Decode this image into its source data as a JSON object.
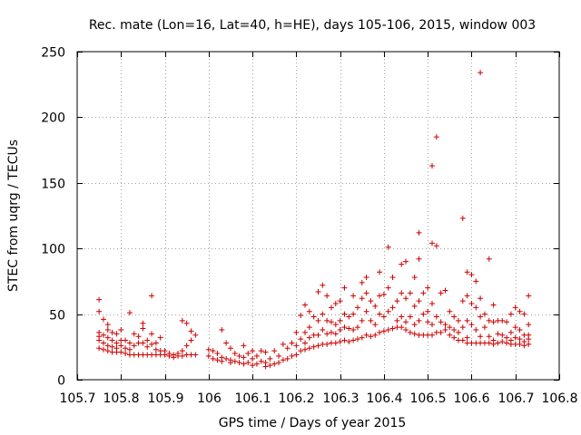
{
  "chart_data": {
    "type": "scatter",
    "title": "Rec. mate (Lon=16, Lat=40, h=HE), days 105-106, 2015, window 003",
    "xlabel": "GPS time / Days of year 2015",
    "ylabel": "STEC from uqrg / TECUs",
    "xlim": [
      105.7,
      106.8
    ],
    "ylim": [
      0,
      250
    ],
    "x_ticks": [
      "105.7",
      "105.8",
      "105.9",
      "106",
      "106.1",
      "106.2",
      "106.3",
      "106.4",
      "106.5",
      "106.6",
      "106.7",
      "106.8"
    ],
    "y_ticks": [
      "0",
      "50",
      "100",
      "150",
      "200",
      "250"
    ],
    "grid": true,
    "marker": "+",
    "color": "#cc0000",
    "series": [
      {
        "values": [
          [
            105.75,
            61
          ],
          [
            105.75,
            52
          ],
          [
            105.75,
            36
          ],
          [
            105.75,
            33
          ],
          [
            105.75,
            30
          ],
          [
            105.75,
            24
          ],
          [
            105.76,
            46
          ],
          [
            105.76,
            34
          ],
          [
            105.76,
            28
          ],
          [
            105.76,
            23
          ],
          [
            105.77,
            42
          ],
          [
            105.77,
            38
          ],
          [
            105.77,
            32
          ],
          [
            105.77,
            26
          ],
          [
            105.77,
            22
          ],
          [
            105.78,
            36
          ],
          [
            105.78,
            30
          ],
          [
            105.78,
            25
          ],
          [
            105.78,
            21
          ],
          [
            105.79,
            35
          ],
          [
            105.79,
            28
          ],
          [
            105.79,
            24
          ],
          [
            105.79,
            21
          ],
          [
            105.8,
            38
          ],
          [
            105.8,
            30
          ],
          [
            105.8,
            26
          ],
          [
            105.8,
            21
          ],
          [
            105.81,
            30
          ],
          [
            105.81,
            24
          ],
          [
            105.81,
            20
          ],
          [
            105.82,
            51
          ],
          [
            105.82,
            28
          ],
          [
            105.82,
            23
          ],
          [
            105.82,
            19
          ],
          [
            105.83,
            35
          ],
          [
            105.83,
            26
          ],
          [
            105.83,
            19
          ],
          [
            105.84,
            33
          ],
          [
            105.84,
            28
          ],
          [
            105.84,
            19
          ],
          [
            105.85,
            43
          ],
          [
            105.85,
            39
          ],
          [
            105.85,
            28
          ],
          [
            105.85,
            19
          ],
          [
            105.86,
            30
          ],
          [
            105.86,
            25
          ],
          [
            105.86,
            19
          ],
          [
            105.87,
            64
          ],
          [
            105.87,
            35
          ],
          [
            105.87,
            27
          ],
          [
            105.87,
            19
          ],
          [
            105.88,
            28
          ],
          [
            105.88,
            23
          ],
          [
            105.88,
            19
          ],
          [
            105.89,
            32
          ],
          [
            105.89,
            22
          ],
          [
            105.89,
            19
          ],
          [
            105.9,
            22
          ],
          [
            105.9,
            19
          ],
          [
            105.91,
            20
          ],
          [
            105.91,
            18
          ],
          [
            105.92,
            19
          ],
          [
            105.92,
            17
          ],
          [
            105.93,
            20
          ],
          [
            105.93,
            18
          ],
          [
            105.94,
            45
          ],
          [
            105.94,
            22
          ],
          [
            105.94,
            18
          ],
          [
            105.95,
            43
          ],
          [
            105.95,
            26
          ],
          [
            105.95,
            19
          ],
          [
            105.96,
            37
          ],
          [
            105.96,
            30
          ],
          [
            105.96,
            19
          ],
          [
            105.97,
            34
          ],
          [
            105.97,
            19
          ],
          [
            106.0,
            23
          ],
          [
            106.0,
            18
          ],
          [
            106.01,
            22
          ],
          [
            106.01,
            16
          ],
          [
            106.02,
            20
          ],
          [
            106.02,
            15
          ],
          [
            106.03,
            38
          ],
          [
            106.03,
            17
          ],
          [
            106.03,
            14
          ],
          [
            106.04,
            28
          ],
          [
            106.04,
            16
          ],
          [
            106.05,
            24
          ],
          [
            106.05,
            15
          ],
          [
            106.05,
            13
          ],
          [
            106.06,
            20
          ],
          [
            106.06,
            14
          ],
          [
            106.07,
            18
          ],
          [
            106.07,
            13
          ],
          [
            106.08,
            26
          ],
          [
            106.08,
            17
          ],
          [
            106.08,
            12
          ],
          [
            106.09,
            20
          ],
          [
            106.09,
            13
          ],
          [
            106.1,
            22
          ],
          [
            106.1,
            16
          ],
          [
            106.1,
            11
          ],
          [
            106.11,
            18
          ],
          [
            106.11,
            12
          ],
          [
            106.12,
            22
          ],
          [
            106.12,
            14
          ],
          [
            106.13,
            21
          ],
          [
            106.13,
            13
          ],
          [
            106.13,
            10
          ],
          [
            106.14,
            16
          ],
          [
            106.14,
            11
          ],
          [
            106.15,
            22
          ],
          [
            106.15,
            12
          ],
          [
            106.16,
            18
          ],
          [
            106.16,
            13
          ],
          [
            106.17,
            27
          ],
          [
            106.17,
            15
          ],
          [
            106.18,
            24
          ],
          [
            106.18,
            16
          ],
          [
            106.19,
            28
          ],
          [
            106.19,
            18
          ],
          [
            106.2,
            36
          ],
          [
            106.2,
            26
          ],
          [
            106.2,
            19
          ],
          [
            106.21,
            49
          ],
          [
            106.21,
            31
          ],
          [
            106.21,
            22
          ],
          [
            106.22,
            57
          ],
          [
            106.22,
            36
          ],
          [
            106.22,
            28
          ],
          [
            106.22,
            23
          ],
          [
            106.23,
            52
          ],
          [
            106.23,
            40
          ],
          [
            106.23,
            32
          ],
          [
            106.23,
            24
          ],
          [
            106.24,
            48
          ],
          [
            106.24,
            34
          ],
          [
            106.24,
            25
          ],
          [
            106.25,
            67
          ],
          [
            106.25,
            45
          ],
          [
            106.25,
            34
          ],
          [
            106.25,
            26
          ],
          [
            106.26,
            72
          ],
          [
            106.26,
            50
          ],
          [
            106.26,
            38
          ],
          [
            106.26,
            27
          ],
          [
            106.27,
            64
          ],
          [
            106.27,
            45
          ],
          [
            106.27,
            35
          ],
          [
            106.27,
            27
          ],
          [
            106.28,
            55
          ],
          [
            106.28,
            44
          ],
          [
            106.28,
            36
          ],
          [
            106.28,
            28
          ],
          [
            106.29,
            58
          ],
          [
            106.29,
            42
          ],
          [
            106.29,
            35
          ],
          [
            106.29,
            28
          ],
          [
            106.3,
            60
          ],
          [
            106.3,
            45
          ],
          [
            106.3,
            38
          ],
          [
            106.3,
            29
          ],
          [
            106.31,
            70
          ],
          [
            106.31,
            50
          ],
          [
            106.31,
            40
          ],
          [
            106.31,
            30
          ],
          [
            106.32,
            48
          ],
          [
            106.32,
            39
          ],
          [
            106.32,
            29
          ],
          [
            106.33,
            64
          ],
          [
            106.33,
            50
          ],
          [
            106.33,
            38
          ],
          [
            106.33,
            30
          ],
          [
            106.34,
            55
          ],
          [
            106.34,
            40
          ],
          [
            106.34,
            31
          ],
          [
            106.35,
            74
          ],
          [
            106.35,
            62
          ],
          [
            106.35,
            45
          ],
          [
            106.35,
            32
          ],
          [
            106.36,
            78
          ],
          [
            106.36,
            66
          ],
          [
            106.36,
            52
          ],
          [
            106.36,
            34
          ],
          [
            106.37,
            60
          ],
          [
            106.37,
            45
          ],
          [
            106.37,
            33
          ],
          [
            106.38,
            56
          ],
          [
            106.38,
            42
          ],
          [
            106.38,
            34
          ],
          [
            106.39,
            82
          ],
          [
            106.39,
            64
          ],
          [
            106.39,
            50
          ],
          [
            106.39,
            36
          ],
          [
            106.4,
            65
          ],
          [
            106.4,
            48
          ],
          [
            106.4,
            37
          ],
          [
            106.41,
            101
          ],
          [
            106.41,
            70
          ],
          [
            106.41,
            52
          ],
          [
            106.41,
            38
          ],
          [
            106.42,
            78
          ],
          [
            106.42,
            55
          ],
          [
            106.42,
            39
          ],
          [
            106.43,
            60
          ],
          [
            106.43,
            45
          ],
          [
            106.43,
            40
          ],
          [
            106.44,
            88
          ],
          [
            106.44,
            66
          ],
          [
            106.44,
            48
          ],
          [
            106.44,
            40
          ],
          [
            106.45,
            90
          ],
          [
            106.45,
            62
          ],
          [
            106.45,
            44
          ],
          [
            106.45,
            38
          ],
          [
            106.46,
            66
          ],
          [
            106.46,
            48
          ],
          [
            106.46,
            36
          ],
          [
            106.47,
            78
          ],
          [
            106.47,
            56
          ],
          [
            106.47,
            42
          ],
          [
            106.47,
            35
          ],
          [
            106.48,
            112
          ],
          [
            106.48,
            92
          ],
          [
            106.48,
            60
          ],
          [
            106.48,
            45
          ],
          [
            106.48,
            34
          ],
          [
            106.49,
            66
          ],
          [
            106.49,
            50
          ],
          [
            106.49,
            34
          ],
          [
            106.5,
            70
          ],
          [
            106.5,
            52
          ],
          [
            106.5,
            44
          ],
          [
            106.5,
            34
          ],
          [
            106.51,
            163
          ],
          [
            106.51,
            104
          ],
          [
            106.51,
            58
          ],
          [
            106.51,
            42
          ],
          [
            106.51,
            34
          ],
          [
            106.52,
            185
          ],
          [
            106.52,
            102
          ],
          [
            106.52,
            48
          ],
          [
            106.52,
            36
          ],
          [
            106.53,
            66
          ],
          [
            106.53,
            44
          ],
          [
            106.53,
            36
          ],
          [
            106.54,
            68
          ],
          [
            106.54,
            42
          ],
          [
            106.54,
            38
          ],
          [
            106.55,
            52
          ],
          [
            106.55,
            40
          ],
          [
            106.55,
            34
          ],
          [
            106.56,
            48
          ],
          [
            106.56,
            38
          ],
          [
            106.56,
            32
          ],
          [
            106.57,
            45
          ],
          [
            106.57,
            36
          ],
          [
            106.57,
            30
          ],
          [
            106.58,
            123
          ],
          [
            106.58,
            60
          ],
          [
            106.58,
            40
          ],
          [
            106.58,
            30
          ],
          [
            106.59,
            82
          ],
          [
            106.59,
            64
          ],
          [
            106.59,
            45
          ],
          [
            106.59,
            32
          ],
          [
            106.59,
            28
          ],
          [
            106.6,
            80
          ],
          [
            106.6,
            58
          ],
          [
            106.6,
            42
          ],
          [
            106.6,
            28
          ],
          [
            106.61,
            75
          ],
          [
            106.61,
            55
          ],
          [
            106.61,
            38
          ],
          [
            106.61,
            28
          ],
          [
            106.62,
            234
          ],
          [
            106.62,
            62
          ],
          [
            106.62,
            48
          ],
          [
            106.62,
            33
          ],
          [
            106.62,
            28
          ],
          [
            106.63,
            50
          ],
          [
            106.63,
            40
          ],
          [
            106.63,
            28
          ],
          [
            106.64,
            92
          ],
          [
            106.64,
            45
          ],
          [
            106.64,
            33
          ],
          [
            106.64,
            28
          ],
          [
            106.65,
            57
          ],
          [
            106.65,
            44
          ],
          [
            106.65,
            30
          ],
          [
            106.65,
            27
          ],
          [
            106.66,
            45
          ],
          [
            106.66,
            35
          ],
          [
            106.66,
            28
          ],
          [
            106.67,
            45
          ],
          [
            106.67,
            34
          ],
          [
            106.67,
            29
          ],
          [
            106.68,
            44
          ],
          [
            106.68,
            32
          ],
          [
            106.68,
            28
          ],
          [
            106.69,
            50
          ],
          [
            106.69,
            36
          ],
          [
            106.69,
            30
          ],
          [
            106.69,
            27
          ],
          [
            106.7,
            55
          ],
          [
            106.7,
            40
          ],
          [
            106.7,
            32
          ],
          [
            106.7,
            27
          ],
          [
            106.71,
            52
          ],
          [
            106.71,
            38
          ],
          [
            106.71,
            31
          ],
          [
            106.71,
            27
          ],
          [
            106.72,
            50
          ],
          [
            106.72,
            34
          ],
          [
            106.72,
            29
          ],
          [
            106.72,
            26
          ],
          [
            106.73,
            64
          ],
          [
            106.73,
            42
          ],
          [
            106.73,
            34
          ],
          [
            106.73,
            31
          ],
          [
            106.73,
            27
          ]
        ]
      }
    ]
  }
}
